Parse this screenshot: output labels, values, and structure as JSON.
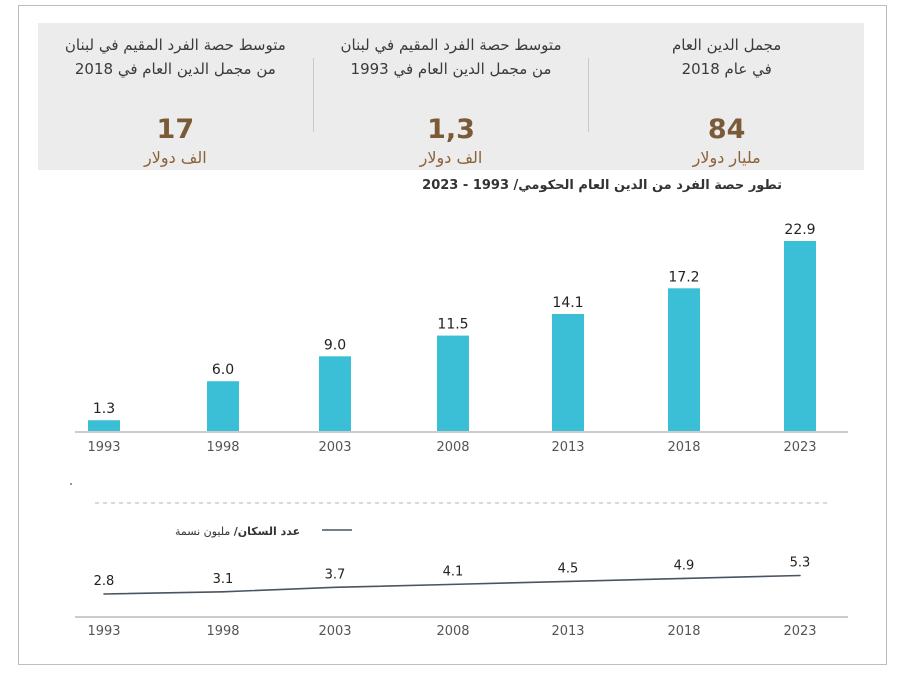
{
  "stats": [
    {
      "line1": "متوسط حصة الفرد المقيم في لبنان",
      "line2": "من مجمل الدين العام في 2018",
      "value": "17",
      "unit": "الف دولار"
    },
    {
      "line1": "متوسط حصة الفرد المقيم في لبنان",
      "line2": "من مجمل الدين العام في 1993",
      "value": "1,3",
      "unit": "الف دولار"
    },
    {
      "line1": "مجمل الدين العام",
      "line2": "في عام 2018",
      "value": "84",
      "unit": "مليار دولار"
    }
  ],
  "chart_data": [
    {
      "type": "bar",
      "title": "تطور حصة الفرد من الدين العام الحكومي/ 1993 - 2023",
      "categories": [
        "1993",
        "1998",
        "2003",
        "2008",
        "2013",
        "2018",
        "2023"
      ],
      "values": [
        1.3,
        6.0,
        9.0,
        11.5,
        14.1,
        17.2,
        22.9
      ],
      "value_labels": [
        "1.3",
        "6.0",
        "9.0",
        "11.5",
        "14.1",
        "17.2",
        "22.9"
      ],
      "color": "#3bbfd6",
      "ylim": [
        0,
        22.9
      ]
    },
    {
      "type": "line",
      "legend": {
        "bold": "عدد السكان/",
        "rest": " مليون نسمة"
      },
      "categories": [
        "1993",
        "1998",
        "2003",
        "2008",
        "2013",
        "2018",
        "2023"
      ],
      "values": [
        2.8,
        3.1,
        3.7,
        4.1,
        4.5,
        4.9,
        5.3
      ],
      "value_labels": [
        "2.8",
        "3.1",
        "3.7",
        "4.1",
        "4.5",
        "4.9",
        "5.3"
      ],
      "color": "#4a5560"
    }
  ]
}
